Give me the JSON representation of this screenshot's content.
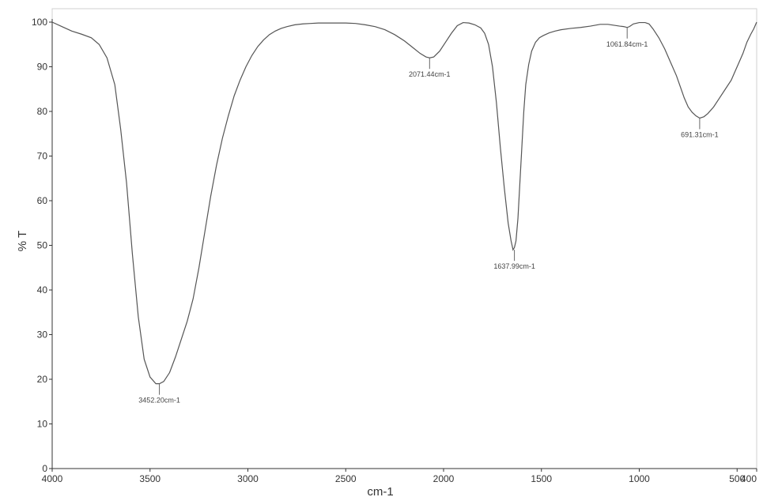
{
  "chart_data": {
    "type": "line",
    "title": "",
    "xlabel": "cm-1",
    "ylabel": "% T",
    "xlim": [
      4000,
      400
    ],
    "ylim": [
      0,
      100
    ],
    "x_reversed": true,
    "grid": false,
    "legend": "none",
    "colors": {
      "line": "#555555",
      "axis": "#333333",
      "background": "#ffffff"
    },
    "x_ticks": [
      4000,
      3500,
      3000,
      2500,
      2000,
      1500,
      1000,
      500,
      400
    ],
    "x_tick_labels": [
      "4000",
      "3500",
      "3000",
      "2500",
      "2000",
      "1500",
      "1000",
      "500",
      "400"
    ],
    "y_ticks": [
      0,
      10,
      20,
      30,
      40,
      50,
      60,
      70,
      80,
      90,
      100
    ],
    "y_tick_labels": [
      "0",
      "10",
      "20",
      "30",
      "40",
      "50",
      "60",
      "70",
      "80",
      "90",
      "100"
    ],
    "series": [
      {
        "x": [
          4000,
          3950,
          3900,
          3850,
          3800,
          3760,
          3720,
          3680,
          3650,
          3620,
          3590,
          3560,
          3530,
          3500,
          3470,
          3452,
          3430,
          3400,
          3370,
          3340,
          3310,
          3280,
          3250,
          3220,
          3190,
          3160,
          3130,
          3100,
          3070,
          3040,
          3010,
          2980,
          2950,
          2920,
          2890,
          2860,
          2830,
          2800,
          2760,
          2720,
          2680,
          2640,
          2600,
          2550,
          2500,
          2450,
          2400,
          2350,
          2300,
          2250,
          2200,
          2160,
          2120,
          2090,
          2071,
          2050,
          2020,
          1990,
          1960,
          1930,
          1900,
          1870,
          1840,
          1810,
          1790,
          1770,
          1750,
          1730,
          1710,
          1690,
          1670,
          1655,
          1645,
          1638,
          1630,
          1620,
          1610,
          1600,
          1590,
          1580,
          1565,
          1550,
          1530,
          1510,
          1490,
          1460,
          1430,
          1400,
          1350,
          1300,
          1250,
          1200,
          1160,
          1130,
          1100,
          1080,
          1070,
          1062,
          1050,
          1030,
          1000,
          970,
          950,
          930,
          900,
          870,
          840,
          810,
          790,
          770,
          750,
          730,
          710,
          691,
          670,
          650,
          620,
          590,
          560,
          530,
          510,
          490,
          470,
          450,
          430,
          415,
          400
        ],
        "y": [
          100,
          99,
          98,
          97.3,
          96.5,
          95,
          92,
          86,
          76,
          64,
          48,
          34,
          24.5,
          20.5,
          19,
          19,
          19.5,
          21.5,
          25,
          29,
          33,
          38,
          45,
          53,
          61,
          68,
          74,
          79,
          83.5,
          87,
          90,
          92.5,
          94.5,
          96,
          97.2,
          98,
          98.6,
          99,
          99.4,
          99.6,
          99.7,
          99.8,
          99.8,
          99.8,
          99.8,
          99.7,
          99.4,
          99,
          98.3,
          97.2,
          95.8,
          94.4,
          93,
          92.2,
          92,
          92.2,
          93.5,
          95.5,
          97.5,
          99.2,
          99.9,
          99.8,
          99.4,
          98.7,
          97.5,
          95,
          90,
          82,
          72,
          63,
          55,
          51,
          49,
          49.5,
          51,
          56,
          64,
          72,
          80,
          86,
          90.5,
          93.5,
          95.5,
          96.5,
          97,
          97.6,
          98,
          98.3,
          98.6,
          98.8,
          99.1,
          99.5,
          99.5,
          99.3,
          99.1,
          99,
          98.9,
          98.8,
          99,
          99.6,
          99.9,
          99.9,
          99.6,
          98.5,
          96.5,
          94,
          91,
          88,
          85.5,
          83,
          81,
          79.8,
          79,
          78.5,
          78.8,
          79.5,
          81,
          83,
          85,
          87,
          89,
          91,
          93,
          95.5,
          97.3,
          98.5,
          100
        ]
      }
    ],
    "peaks": [
      {
        "x": 3452.2,
        "y": 19,
        "label": "3452.20cm-1"
      },
      {
        "x": 2071.44,
        "y": 92,
        "label": "2071.44cm-1"
      },
      {
        "x": 1637.99,
        "y": 49,
        "label": "1637.99cm-1"
      },
      {
        "x": 1061.84,
        "y": 98.8,
        "label": "1061.84cm-1"
      },
      {
        "x": 691.31,
        "y": 78.5,
        "label": "691.31cm-1"
      }
    ]
  }
}
